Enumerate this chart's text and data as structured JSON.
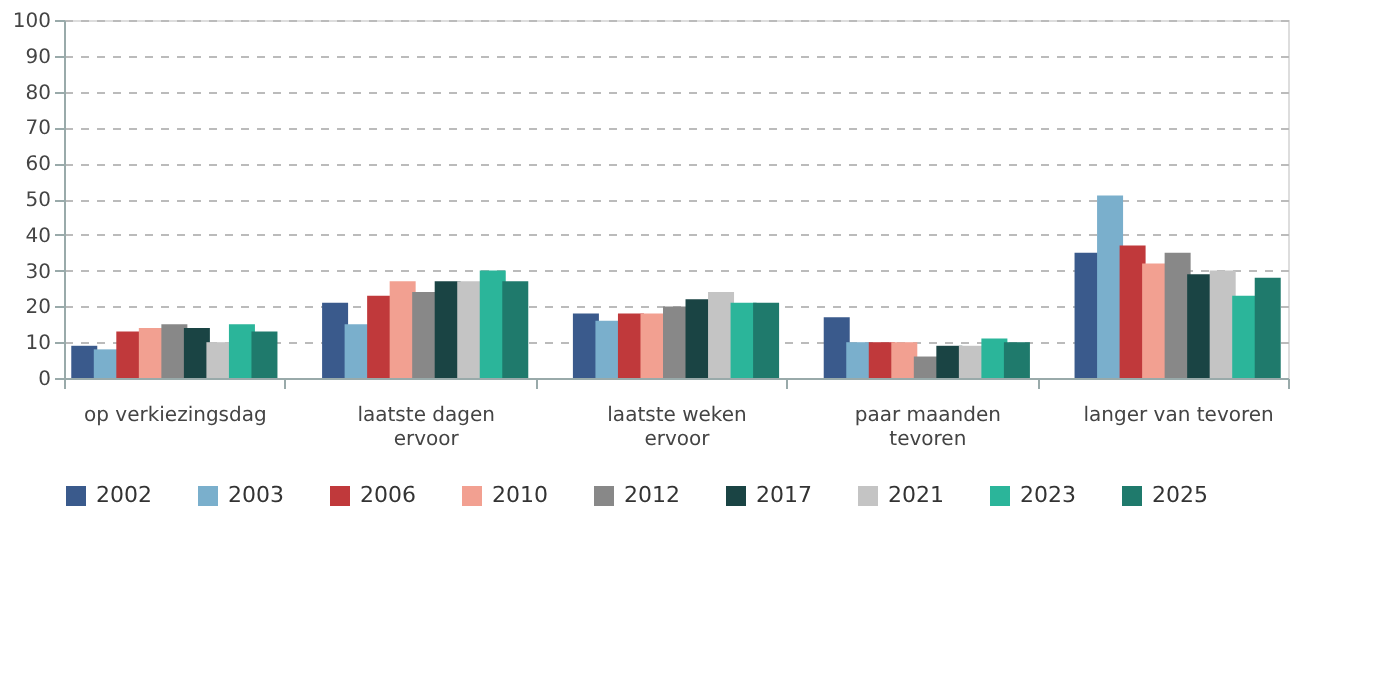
{
  "chart_data": {
    "type": "bar",
    "categories": [
      "op verkiezingsdag",
      "laatste dagen\nervoor",
      "laatste weken\nervoor",
      "paar maanden\ntevoren",
      "langer van tevoren"
    ],
    "series": [
      {
        "name": "2002",
        "color": "#3a5a8c",
        "values": [
          9,
          21,
          18,
          17,
          35
        ]
      },
      {
        "name": "2003",
        "color": "#7aafcc",
        "values": [
          8,
          15,
          16,
          10,
          51
        ]
      },
      {
        "name": "2006",
        "color": "#c0393b",
        "values": [
          13,
          23,
          18,
          10,
          37
        ]
      },
      {
        "name": "2010",
        "color": "#f2a091",
        "values": [
          14,
          27,
          18,
          10,
          32
        ]
      },
      {
        "name": "2012",
        "color": "#888888",
        "values": [
          15,
          24,
          20,
          6,
          35
        ]
      },
      {
        "name": "2017",
        "color": "#1a4444",
        "values": [
          14,
          27,
          22,
          9,
          29
        ]
      },
      {
        "name": "2021",
        "color": "#c4c4c4",
        "values": [
          10,
          27,
          24,
          9,
          30
        ]
      },
      {
        "name": "2023",
        "color": "#2bb59a",
        "values": [
          15,
          30,
          21,
          11,
          23
        ]
      },
      {
        "name": "2025",
        "color": "#1f7a6c",
        "values": [
          13,
          27,
          21,
          10,
          28
        ]
      }
    ],
    "ylim": [
      0,
      100
    ],
    "yticks": [
      0,
      10,
      20,
      30,
      40,
      50,
      60,
      70,
      80,
      90,
      100
    ],
    "grid": "y",
    "legend": "bottom"
  }
}
